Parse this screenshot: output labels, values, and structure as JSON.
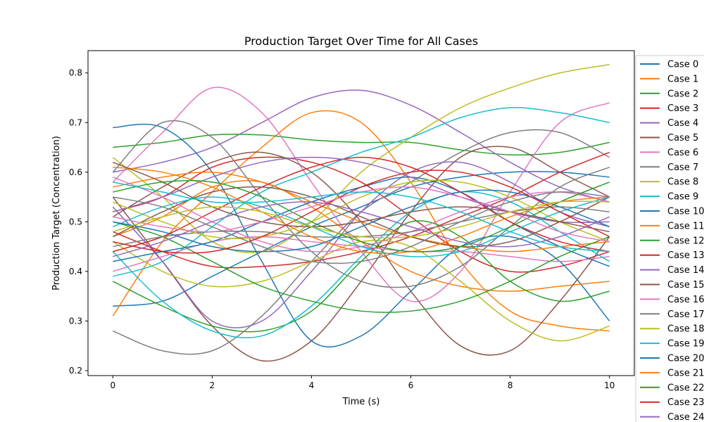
{
  "chart_data": {
    "type": "line",
    "title": "Production Target Over Time for All Cases",
    "xlabel": "Time (s)",
    "ylabel": "Production Target (Concentration)",
    "xlim": [
      -0.5,
      10.5
    ],
    "ylim": [
      0.19,
      0.845
    ],
    "xticks": [
      0,
      2,
      4,
      6,
      8,
      10
    ],
    "yticks": [
      0.2,
      0.3,
      0.4,
      0.5,
      0.6,
      0.7,
      0.8
    ],
    "grid": false,
    "legend": {
      "placement": "right-outside",
      "entries_visible": 25
    },
    "x": [
      0,
      1,
      2,
      3,
      4,
      5,
      6,
      7,
      8,
      9,
      10
    ],
    "series": [
      {
        "name": "Case 0",
        "color": "#1f77b4",
        "values": [
          0.33,
          0.34,
          0.39,
          0.44,
          0.49,
          0.53,
          0.57,
          0.59,
          0.6,
          0.6,
          0.59
        ]
      },
      {
        "name": "Case 1",
        "color": "#ff7f0e",
        "values": [
          0.31,
          0.46,
          0.56,
          0.65,
          0.72,
          0.7,
          0.58,
          0.42,
          0.32,
          0.29,
          0.28
        ]
      },
      {
        "name": "Case 2",
        "color": "#2ca02c",
        "values": [
          0.65,
          0.66,
          0.675,
          0.675,
          0.665,
          0.66,
          0.66,
          0.645,
          0.635,
          0.64,
          0.66
        ]
      },
      {
        "name": "Case 3",
        "color": "#d62728",
        "values": [
          0.52,
          0.55,
          0.61,
          0.63,
          0.62,
          0.58,
          0.51,
          0.44,
          0.4,
          0.41,
          0.44
        ]
      },
      {
        "name": "Case 4",
        "color": "#9467bd",
        "values": [
          0.6,
          0.62,
          0.65,
          0.7,
          0.75,
          0.765,
          0.735,
          0.68,
          0.62,
          0.57,
          0.54
        ]
      },
      {
        "name": "Case 5",
        "color": "#8c564b",
        "values": [
          0.55,
          0.42,
          0.29,
          0.22,
          0.26,
          0.38,
          0.52,
          0.63,
          0.65,
          0.6,
          0.55
        ]
      },
      {
        "name": "Case 6",
        "color": "#e377c2",
        "values": [
          0.58,
          0.68,
          0.77,
          0.72,
          0.58,
          0.44,
          0.34,
          0.4,
          0.56,
          0.7,
          0.74
        ]
      },
      {
        "name": "Case 7",
        "color": "#7f7f7f",
        "values": [
          0.28,
          0.24,
          0.24,
          0.31,
          0.42,
          0.52,
          0.58,
          0.64,
          0.68,
          0.68,
          0.63
        ]
      },
      {
        "name": "Case 8",
        "color": "#bcbd22",
        "values": [
          0.63,
          0.55,
          0.46,
          0.44,
          0.5,
          0.6,
          0.67,
          0.73,
          0.77,
          0.8,
          0.817
        ]
      },
      {
        "name": "Case 9",
        "color": "#17becf",
        "values": [
          0.39,
          0.42,
          0.49,
          0.56,
          0.6,
          0.64,
          0.67,
          0.71,
          0.73,
          0.72,
          0.7
        ]
      },
      {
        "name": "Case 10",
        "color": "#1f77b4",
        "values": [
          0.69,
          0.69,
          0.6,
          0.42,
          0.26,
          0.27,
          0.36,
          0.45,
          0.47,
          0.42,
          0.3
        ]
      },
      {
        "name": "Case 11",
        "color": "#ff7f0e",
        "values": [
          0.47,
          0.51,
          0.57,
          0.58,
          0.53,
          0.46,
          0.4,
          0.37,
          0.36,
          0.37,
          0.38
        ]
      },
      {
        "name": "Case 12",
        "color": "#2ca02c",
        "values": [
          0.38,
          0.33,
          0.29,
          0.28,
          0.32,
          0.42,
          0.5,
          0.47,
          0.38,
          0.34,
          0.36
        ]
      },
      {
        "name": "Case 13",
        "color": "#d62728",
        "values": [
          0.48,
          0.44,
          0.41,
          0.41,
          0.42,
          0.44,
          0.47,
          0.51,
          0.55,
          0.6,
          0.64
        ]
      },
      {
        "name": "Case 14",
        "color": "#9467bd",
        "values": [
          0.53,
          0.42,
          0.3,
          0.3,
          0.4,
          0.52,
          0.6,
          0.62,
          0.58,
          0.52,
          0.49
        ]
      },
      {
        "name": "Case 15",
        "color": "#8c564b",
        "values": [
          0.51,
          0.57,
          0.62,
          0.64,
          0.6,
          0.5,
          0.36,
          0.25,
          0.24,
          0.34,
          0.47
        ]
      },
      {
        "name": "Case 16",
        "color": "#e377c2",
        "values": [
          0.4,
          0.43,
          0.46,
          0.47,
          0.46,
          0.45,
          0.44,
          0.44,
          0.43,
          0.42,
          0.43
        ]
      },
      {
        "name": "Case 17",
        "color": "#7f7f7f",
        "values": [
          0.6,
          0.7,
          0.67,
          0.55,
          0.44,
          0.38,
          0.37,
          0.41,
          0.49,
          0.57,
          0.61
        ]
      },
      {
        "name": "Case 18",
        "color": "#bcbd22",
        "values": [
          0.46,
          0.4,
          0.37,
          0.38,
          0.42,
          0.46,
          0.45,
          0.38,
          0.3,
          0.26,
          0.29
        ]
      },
      {
        "name": "Case 19",
        "color": "#17becf",
        "values": [
          0.44,
          0.34,
          0.28,
          0.27,
          0.33,
          0.43,
          0.52,
          0.56,
          0.54,
          0.48,
          0.42
        ]
      },
      {
        "name": "Case 20",
        "color": "#1f77b4",
        "values": [
          0.42,
          0.44,
          0.46,
          0.5,
          0.54,
          0.57,
          0.59,
          0.56,
          0.5,
          0.45,
          0.41
        ]
      },
      {
        "name": "Case 21",
        "color": "#ff7f0e",
        "values": [
          0.57,
          0.59,
          0.6,
          0.58,
          0.54,
          0.5,
          0.47,
          0.45,
          0.44,
          0.45,
          0.46
        ]
      },
      {
        "name": "Case 22",
        "color": "#2ca02c",
        "values": [
          0.5,
          0.47,
          0.42,
          0.37,
          0.34,
          0.32,
          0.32,
          0.34,
          0.38,
          0.43,
          0.47
        ]
      },
      {
        "name": "Case 23",
        "color": "#d62728",
        "values": [
          0.44,
          0.47,
          0.52,
          0.57,
          0.61,
          0.63,
          0.61,
          0.56,
          0.5,
          0.46,
          0.44
        ]
      },
      {
        "name": "Case 24",
        "color": "#9467bd",
        "values": [
          0.52,
          0.55,
          0.59,
          0.62,
          0.63,
          0.62,
          0.59,
          0.55,
          0.52,
          0.5,
          0.5
        ]
      },
      {
        "color": "#8c564b",
        "values": [
          0.47,
          0.52,
          0.56,
          0.57,
          0.55,
          0.51,
          0.47,
          0.45,
          0.46,
          0.5,
          0.55
        ]
      },
      {
        "color": "#e377c2",
        "values": [
          0.59,
          0.55,
          0.5,
          0.46,
          0.44,
          0.45,
          0.48,
          0.52,
          0.55,
          0.56,
          0.54
        ]
      },
      {
        "color": "#7f7f7f",
        "values": [
          0.45,
          0.47,
          0.48,
          0.48,
          0.47,
          0.47,
          0.48,
          0.5,
          0.52,
          0.53,
          0.52
        ]
      },
      {
        "color": "#bcbd22",
        "values": [
          0.54,
          0.5,
          0.47,
          0.47,
          0.5,
          0.55,
          0.58,
          0.58,
          0.55,
          0.5,
          0.46
        ]
      },
      {
        "color": "#17becf",
        "values": [
          0.49,
          0.53,
          0.55,
          0.53,
          0.49,
          0.45,
          0.43,
          0.44,
          0.48,
          0.52,
          0.55
        ]
      },
      {
        "color": "#1f77b4",
        "values": [
          0.5,
          0.48,
          0.45,
          0.44,
          0.45,
          0.49,
          0.53,
          0.56,
          0.56,
          0.53,
          0.49
        ]
      },
      {
        "color": "#ff7f0e",
        "values": [
          0.61,
          0.6,
          0.57,
          0.52,
          0.47,
          0.44,
          0.44,
          0.47,
          0.51,
          0.54,
          0.55
        ]
      },
      {
        "color": "#2ca02c",
        "values": [
          0.56,
          0.58,
          0.58,
          0.55,
          0.5,
          0.46,
          0.44,
          0.45,
          0.49,
          0.54,
          0.58
        ]
      },
      {
        "color": "#d62728",
        "values": [
          0.46,
          0.44,
          0.44,
          0.47,
          0.52,
          0.57,
          0.6,
          0.6,
          0.57,
          0.52,
          0.47
        ]
      },
      {
        "color": "#9467bd",
        "values": [
          0.43,
          0.46,
          0.5,
          0.53,
          0.54,
          0.52,
          0.49,
          0.46,
          0.45,
          0.47,
          0.51
        ]
      },
      {
        "color": "#8c564b",
        "values": [
          0.62,
          0.58,
          0.53,
          0.5,
          0.49,
          0.5,
          0.52,
          0.53,
          0.52,
          0.5,
          0.48
        ]
      },
      {
        "color": "#e377c2",
        "values": [
          0.51,
          0.49,
          0.48,
          0.5,
          0.53,
          0.56,
          0.57,
          0.55,
          0.52,
          0.48,
          0.46
        ]
      },
      {
        "color": "#7f7f7f",
        "values": [
          0.55,
          0.53,
          0.49,
          0.45,
          0.42,
          0.42,
          0.45,
          0.5,
          0.54,
          0.56,
          0.55
        ]
      },
      {
        "color": "#bcbd22",
        "values": [
          0.48,
          0.51,
          0.53,
          0.52,
          0.49,
          0.47,
          0.47,
          0.49,
          0.52,
          0.54,
          0.54
        ]
      },
      {
        "color": "#17becf",
        "values": [
          0.58,
          0.56,
          0.54,
          0.54,
          0.55,
          0.56,
          0.55,
          0.52,
          0.48,
          0.45,
          0.44
        ]
      }
    ]
  }
}
